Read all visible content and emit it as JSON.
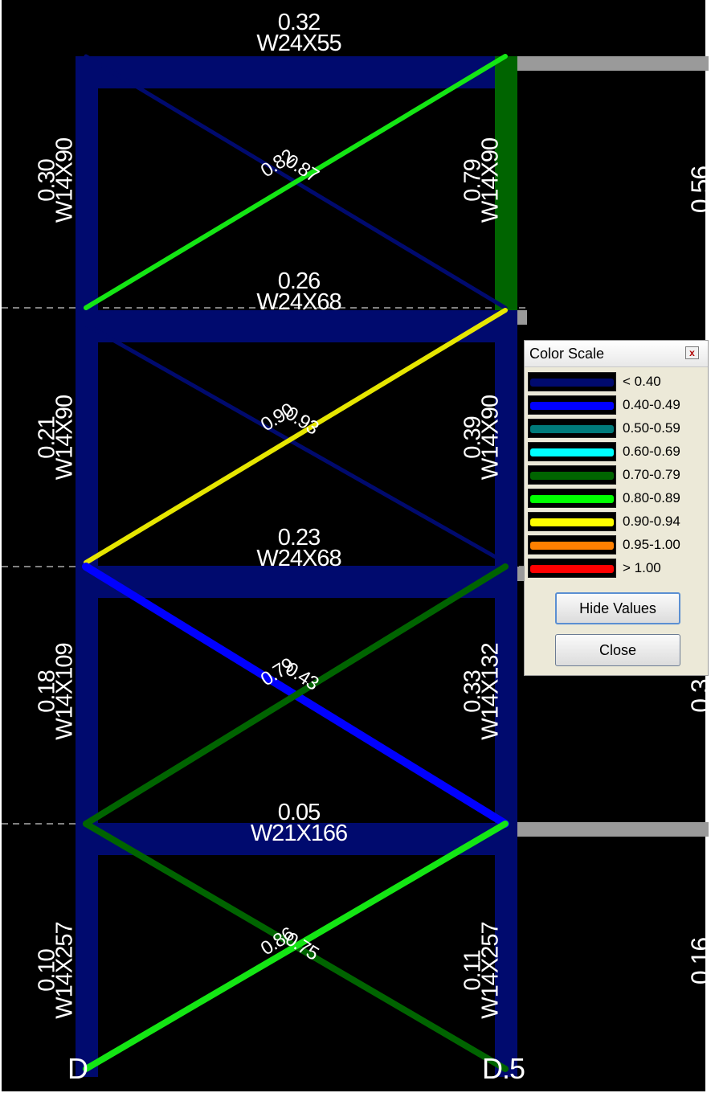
{
  "beams": [
    {
      "ratio": "0.32",
      "section": "W24X55"
    },
    {
      "ratio": "0.26",
      "section": "W24X68"
    },
    {
      "ratio": "0.23",
      "section": "W24X68"
    },
    {
      "ratio": "0.05",
      "section": "W21X166"
    }
  ],
  "left_columns": [
    {
      "ratio": "0.30",
      "section": "W14X90"
    },
    {
      "ratio": "0.21",
      "section": "W14X90"
    },
    {
      "ratio": "0.18",
      "section": "W14X109"
    },
    {
      "ratio": "0.10",
      "section": "W14X257"
    }
  ],
  "right_columns": [
    {
      "ratio": "0.79",
      "section": "W14X90"
    },
    {
      "ratio": "0.39",
      "section": "W14X90"
    },
    {
      "ratio": "0.33",
      "section": "W14X132"
    },
    {
      "ratio": "0.11",
      "section": "W14X257"
    }
  ],
  "brace_labels": [
    "0.82",
    "0.87",
    "0.90",
    "0.93",
    "0.79",
    "0.43",
    "0.86",
    "0.75"
  ],
  "edge_values": [
    "0.56",
    "0.3",
    "0.16"
  ],
  "grid_labels": {
    "left": "D",
    "right": "D.5"
  },
  "colors": {
    "low": "#000a6e",
    "blue": "#0000ff",
    "teal": "#007a7a",
    "cyan": "#00ffff",
    "dark_green": "#006400",
    "green": "#14e614",
    "yellow": "#e6e600",
    "orange": "#ff8000",
    "red": "#ff0000",
    "gray": "#9a9a9a"
  },
  "color_scale": {
    "title": "Color Scale",
    "close_glyph": "x",
    "items": [
      {
        "label": "< 0.40",
        "color": "#000a6e"
      },
      {
        "label": "0.40-0.49",
        "color": "#0000ff"
      },
      {
        "label": "0.50-0.59",
        "color": "#007a7a"
      },
      {
        "label": "0.60-0.69",
        "color": "#00ffff"
      },
      {
        "label": "0.70-0.79",
        "color": "#006400"
      },
      {
        "label": "0.80-0.89",
        "color": "#00ff00"
      },
      {
        "label": "0.90-0.94",
        "color": "#ffff00"
      },
      {
        "label": "0.95-1.00",
        "color": "#ff8000"
      },
      {
        "label": "> 1.00",
        "color": "#ff0000"
      }
    ],
    "hide_values_label": "Hide Values",
    "close_label": "Close"
  }
}
